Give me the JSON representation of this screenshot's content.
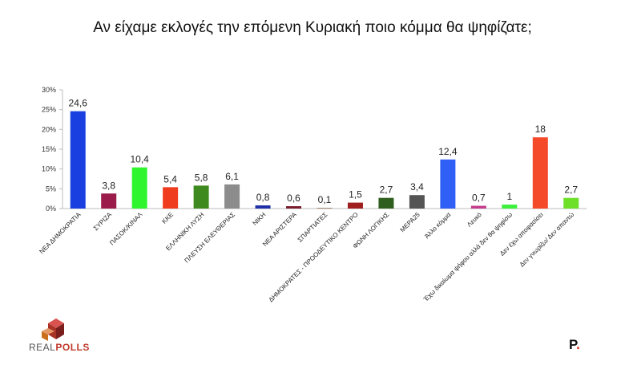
{
  "chart_data": {
    "type": "bar",
    "title": "Αν είχαμε εκλογές την επόμενη Κυριακή ποιο κόμμα θα ψηφίζατε;",
    "ylim": [
      0,
      30
    ],
    "y_ticks": [
      "0%",
      "5%",
      "10%",
      "15%",
      "20%",
      "25%",
      "30%"
    ],
    "grid": false,
    "categories": [
      "ΝΕΑ ΔΗΜΟΚΡΑΤΙΑ",
      "ΣΥΡΙΖΑ",
      "ΠΑΣΟΚ/ΚΙΝΑΛ",
      "ΚΚΕ",
      "ΕΛΛΗΝΙΚΗ ΛΥΣΗ",
      "ΠΛΕΥΣΗ ΕΛΕΥΘΕΡΙΑΣ",
      "ΝΙΚΗ",
      "ΝΕΑ ΑΡΙΣΤΕΡΑ",
      "ΣΠΑΡΤΙΑΤΕΣ",
      "ΔΗΜΟΚΡΑΤΕΣ - ΠΡΟΟΔΕΥΤΙΚΟ ΚΕΝΤΡΟ",
      "ΦΩΝΗ ΛΟΓΙΚΗΣ",
      "ΜΕΡΑ25",
      "Άλλο κόμμα",
      "Λευκό",
      "Έχω δικαίωμα ψήφου αλλά δεν θα ψηφίσω",
      "Δεν έχω αποφασίσει",
      "Δεν γνωρίζω/ Δεν απαντώ"
    ],
    "values": [
      24.6,
      3.8,
      10.4,
      5.4,
      5.8,
      6.1,
      0.8,
      0.6,
      0.1,
      1.5,
      2.7,
      3.4,
      12.4,
      0.7,
      1,
      18,
      2.7
    ],
    "value_labels": [
      "24,6",
      "3,8",
      "10,4",
      "5,4",
      "5,8",
      "6,1",
      "0,8",
      "0,6",
      "0,1",
      "1,5",
      "2,7",
      "3,4",
      "12,4",
      "0,7",
      "1",
      "18",
      "2,7"
    ],
    "colors": [
      "#1a3fe0",
      "#9b1c4b",
      "#2ef52e",
      "#f03c1e",
      "#3f8a1e",
      "#8c8c8c",
      "#1f2fa8",
      "#7a1e2e",
      "#8a6a4a",
      "#a01e1e",
      "#2f5f1e",
      "#555555",
      "#2f5ff5",
      "#c43c8c",
      "#3cf03c",
      "#f54a2a",
      "#6ee02a"
    ]
  },
  "branding": {
    "logo_prefix": "REAL",
    "logo_suffix": "POLLS",
    "mark": "P",
    "mark_dot": "."
  }
}
